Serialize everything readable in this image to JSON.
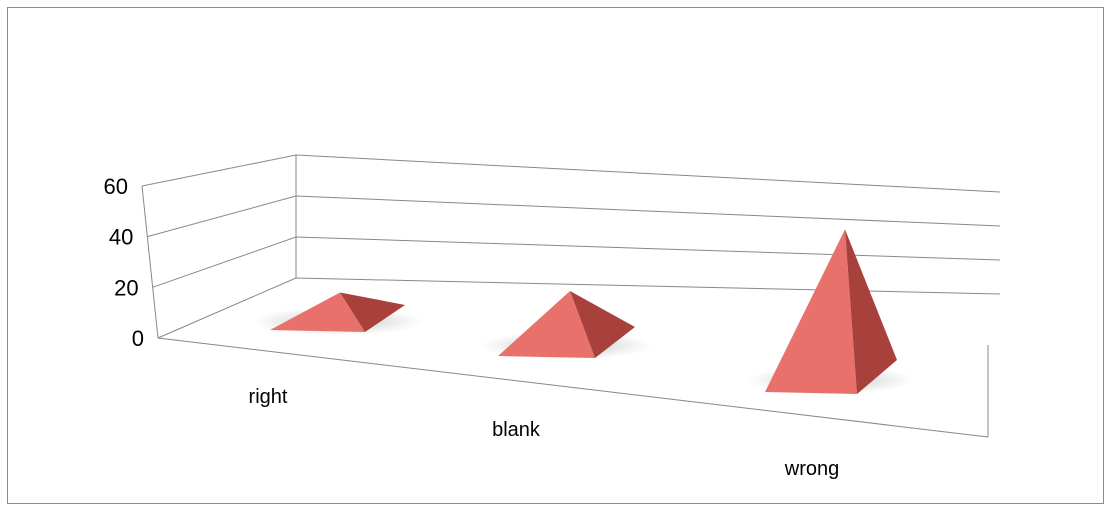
{
  "chart_data": {
    "type": "bar",
    "shape": "pyramid-3d",
    "categories": [
      "right",
      "blank",
      "wrong"
    ],
    "series": [
      {
        "values": [
          11,
          20,
          52
        ]
      }
    ],
    "y_ticks": [
      "0",
      "20",
      "40",
      "60"
    ],
    "ylim": [
      0,
      60
    ],
    "title": "",
    "xlabel": "",
    "ylabel": "",
    "grid": true,
    "legend": "none",
    "colors": {
      "front": "#e8716c",
      "front_dark": "#d35d58",
      "side": "#a8403c",
      "grid": "#888888",
      "frame": "#8c8c8c"
    }
  }
}
